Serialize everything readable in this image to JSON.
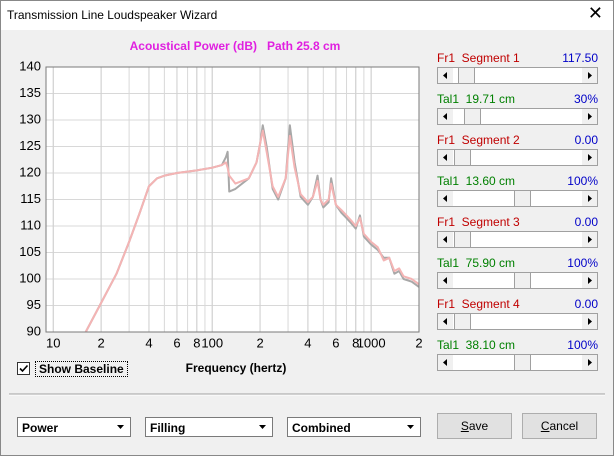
{
  "window": {
    "title": "Transmission Line Loudspeaker Wizard"
  },
  "chart_data": {
    "type": "line",
    "title": "Acoustical Power (dB)   Path 25.8 cm",
    "x_label": "Frequency (hertz)",
    "log_x": true,
    "grid": true,
    "xlim": [
      9,
      2000
    ],
    "ylim": [
      90,
      140
    ],
    "xticks": [
      10,
      {
        "value": 20,
        "label": "2"
      },
      {
        "value": 40,
        "label": "4"
      },
      {
        "value": 60,
        "label": "6"
      },
      {
        "value": 80,
        "label": "8"
      },
      100,
      {
        "value": 200,
        "label": "2"
      },
      {
        "value": 400,
        "label": "4"
      },
      {
        "value": 600,
        "label": "6"
      },
      {
        "value": 800,
        "label": "8"
      },
      1000,
      {
        "value": 2000,
        "label": "2"
      }
    ],
    "yticks": [
      90,
      95,
      100,
      105,
      110,
      115,
      120,
      125,
      130,
      135,
      140
    ],
    "x": [
      16,
      20,
      25,
      30,
      35,
      40,
      45,
      50,
      60,
      80,
      100,
      115,
      122,
      125,
      128,
      140,
      170,
      190,
      200,
      208,
      220,
      240,
      260,
      290,
      308,
      330,
      360,
      400,
      430,
      460,
      480,
      500,
      540,
      560,
      600,
      650,
      700,
      750,
      800,
      850,
      900,
      1000,
      1100,
      1200,
      1300,
      1400,
      1500,
      1600,
      1800,
      2000
    ],
    "series": [
      {
        "color": "#a8a8a8",
        "values": [
          90,
          95.5,
          101,
          107,
          112.5,
          117.5,
          119,
          119.5,
          120,
          120.5,
          121,
          121.5,
          123,
          124,
          116.5,
          117,
          119,
          122,
          125.5,
          129,
          125,
          117,
          115,
          119,
          129,
          122,
          115.5,
          114,
          115.5,
          119.5,
          115,
          113.5,
          114.5,
          119,
          114,
          112.5,
          111.5,
          110.5,
          109.5,
          112,
          108,
          106.5,
          105.5,
          104,
          104,
          101,
          101.5,
          100,
          99.5,
          98.5
        ]
      },
      {
        "color": "#f4b4b4",
        "values": [
          90,
          95.5,
          101,
          107,
          112.5,
          117.5,
          119,
          119.5,
          120,
          120.5,
          121,
          121.5,
          122,
          121,
          119.5,
          118,
          119,
          122,
          125.5,
          128,
          124,
          117.5,
          115.5,
          119,
          127,
          121,
          116,
          114.5,
          115.5,
          118.5,
          115,
          114,
          115,
          118,
          114,
          113,
          112,
          111,
          110,
          111.5,
          108.5,
          107,
          106,
          103.5,
          104,
          101.5,
          102,
          100.5,
          100,
          99
        ]
      }
    ]
  },
  "sliders": [
    {
      "label": "Fr1  Segment 1",
      "value": "117.50"
    },
    {
      "label": "Tal1  19.71 cm",
      "value": "30%"
    },
    {
      "label": "Fr1  Segment 2",
      "value": "0.00"
    },
    {
      "label": "Tal1  13.60 cm",
      "value": "100%"
    },
    {
      "label": "Fr1  Segment 3",
      "value": "0.00"
    },
    {
      "label": "Tal1  75.90 cm",
      "value": "100%"
    },
    {
      "label": "Fr1  Segment 4",
      "value": "0.00"
    },
    {
      "label": "Tal1  38.10 cm",
      "value": "100%"
    }
  ],
  "checkbox": {
    "label": "Show Baseline",
    "checked": true
  },
  "dropdowns": [
    "Power",
    "Filling",
    "Combined"
  ],
  "buttons": [
    "Save",
    "Cancel"
  ]
}
